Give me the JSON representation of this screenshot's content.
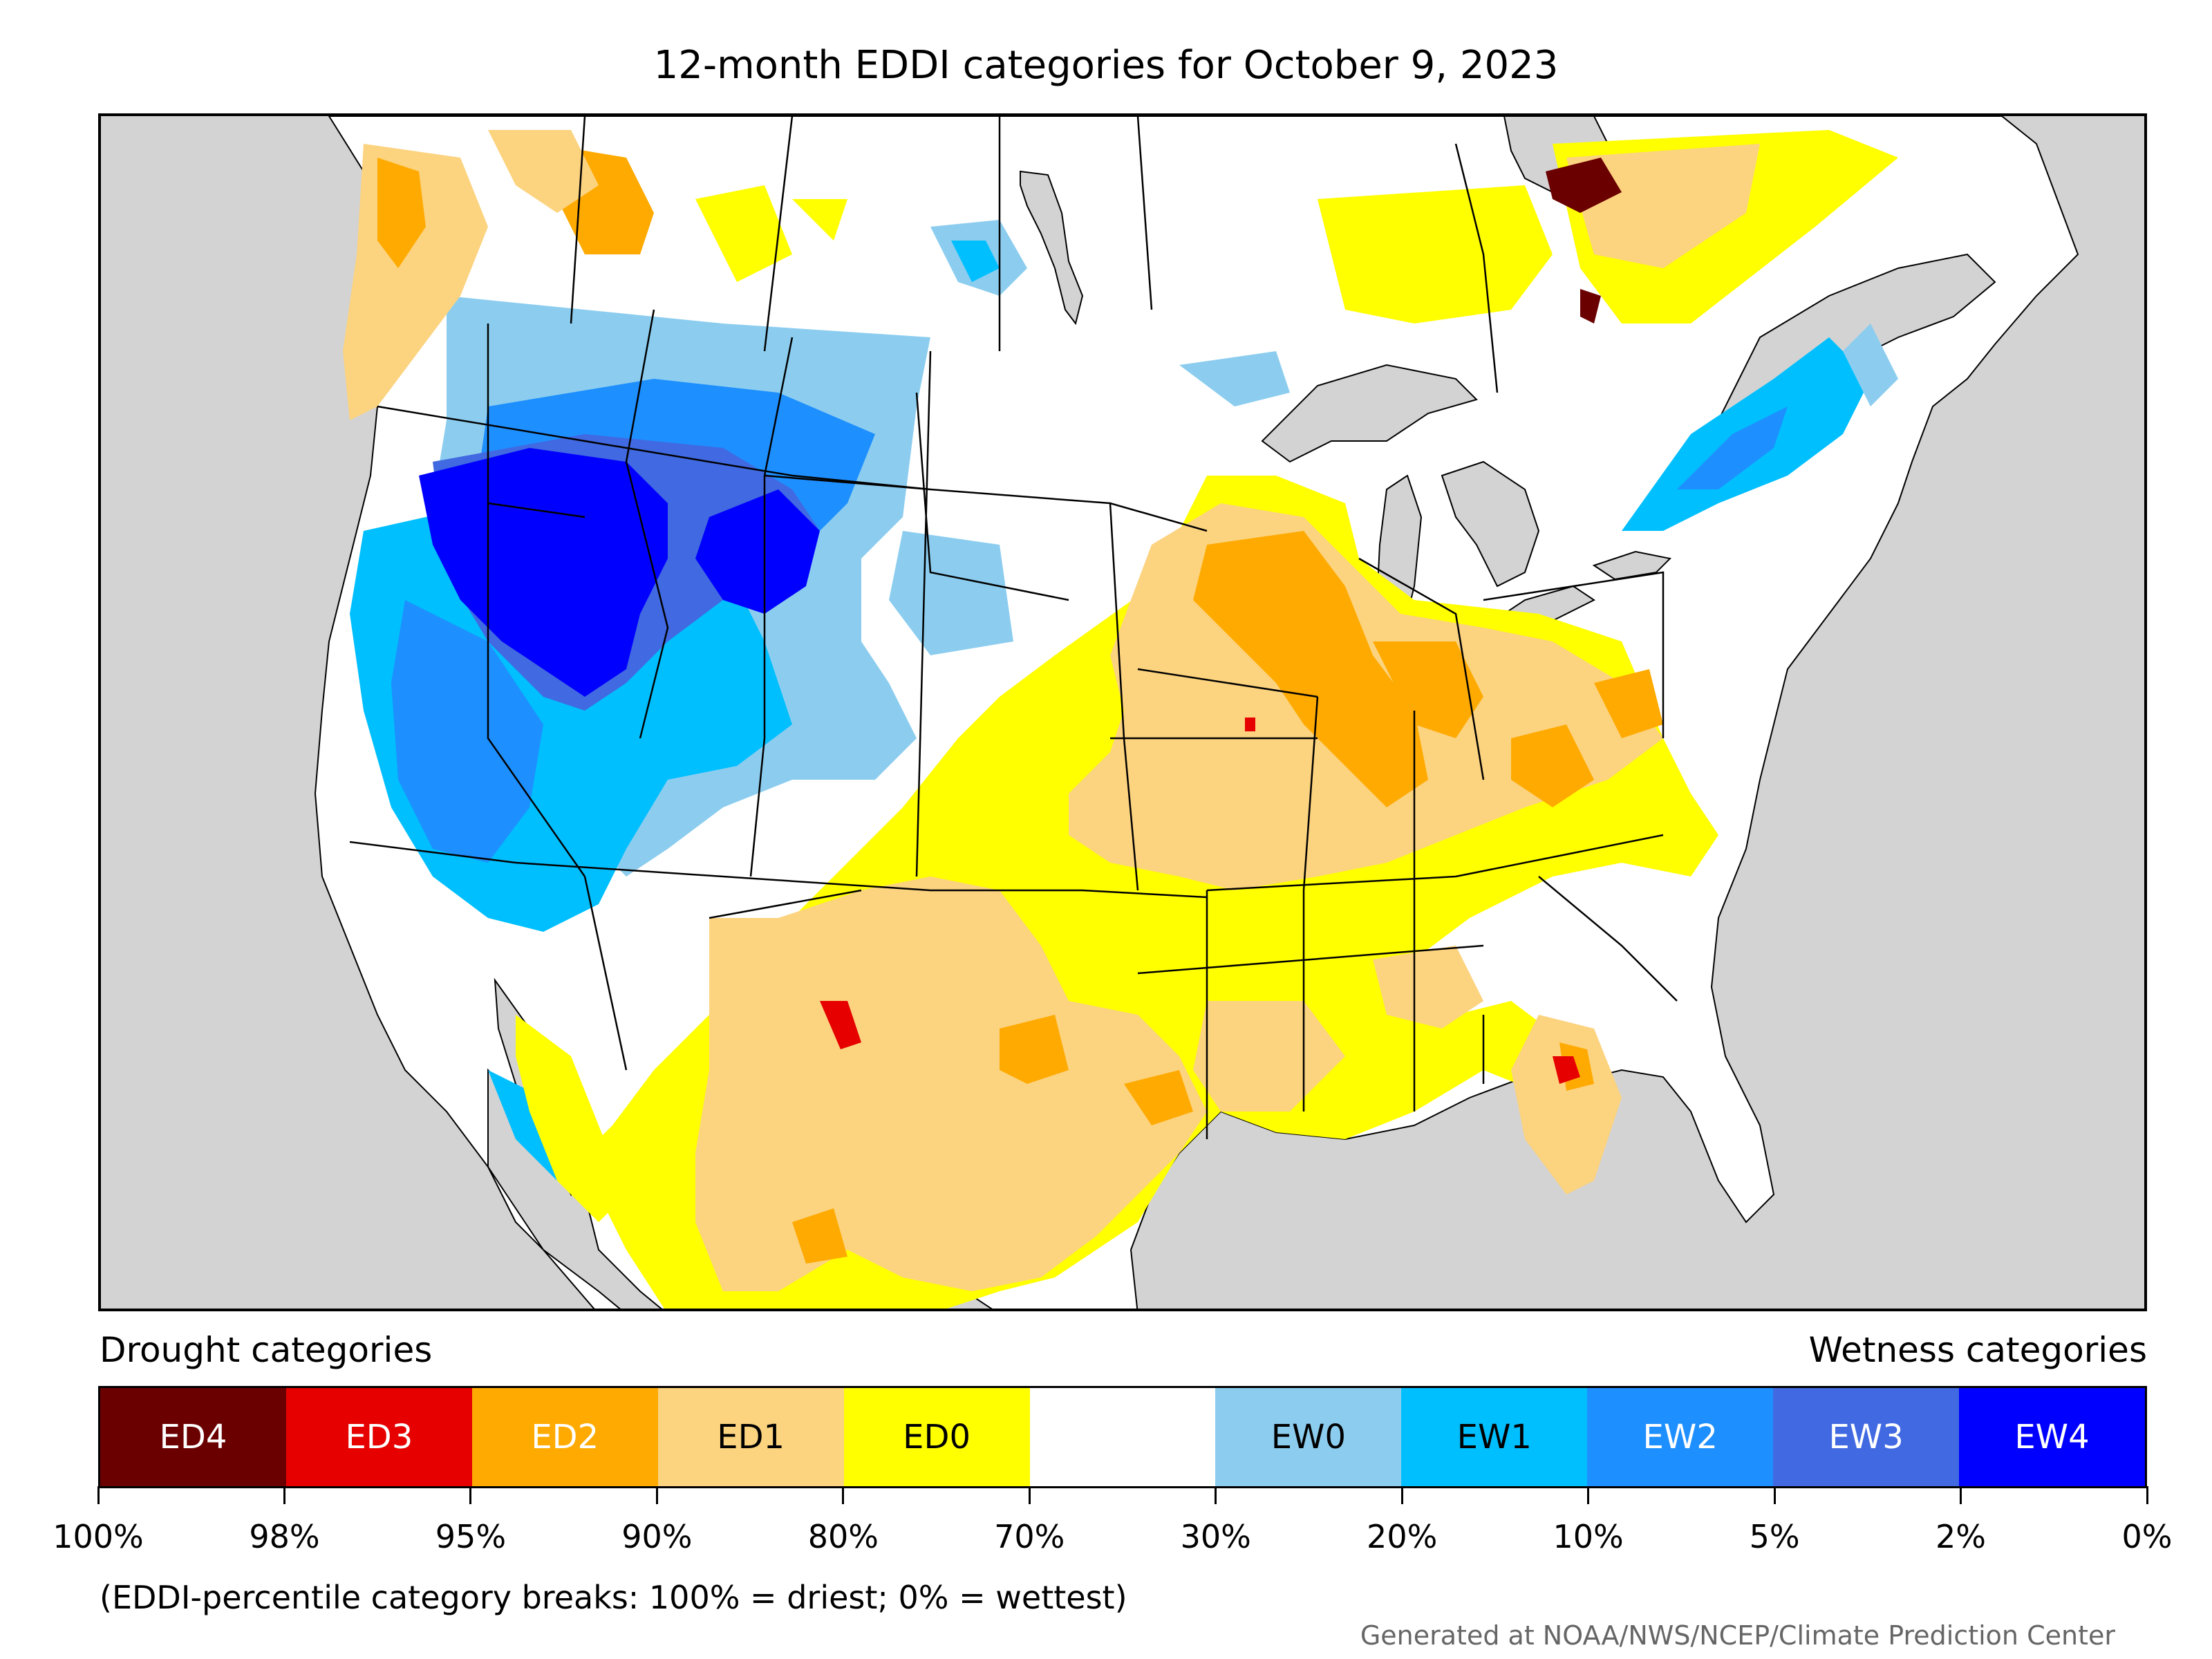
{
  "title": "12-month EDDI categories for October 9, 2023",
  "legend": {
    "drought_label": "Drought categories",
    "wetness_label": "Wetness categories",
    "categories": [
      {
        "label": "ED4",
        "color": "#6b0000",
        "text_color": "#ffffff"
      },
      {
        "label": "ED3",
        "color": "#e60000",
        "text_color": "#ffffff"
      },
      {
        "label": "ED2",
        "color": "#ffaa00",
        "text_color": "#ffffff"
      },
      {
        "label": "ED1",
        "color": "#fcd37f",
        "text_color": "#000000"
      },
      {
        "label": "ED0",
        "color": "#ffff00",
        "text_color": "#000000"
      },
      {
        "label": "",
        "color": "#ffffff",
        "text_color": "#000000"
      },
      {
        "label": "EW0",
        "color": "#8ccdef",
        "text_color": "#000000"
      },
      {
        "label": "EW1",
        "color": "#00bfff",
        "text_color": "#000000"
      },
      {
        "label": "EW2",
        "color": "#1e8fff",
        "text_color": "#ffffff"
      },
      {
        "label": "EW3",
        "color": "#4169e1",
        "text_color": "#ffffff"
      },
      {
        "label": "EW4",
        "color": "#0000ff",
        "text_color": "#ffffff"
      }
    ],
    "tick_labels": [
      "100%",
      "98%",
      "95%",
      "90%",
      "80%",
      "70%",
      "30%",
      "20%",
      "10%",
      "5%",
      "2%",
      "0%"
    ]
  },
  "note": "(EDDI-percentile category breaks: 100% = driest; 0% = wettest)",
  "credit": "Generated at NOAA/NWS/NCEP/Climate Prediction Center",
  "map": {
    "background_color": "#d3d3d3",
    "land_color": "#ffffff",
    "border_color": "#000000"
  }
}
